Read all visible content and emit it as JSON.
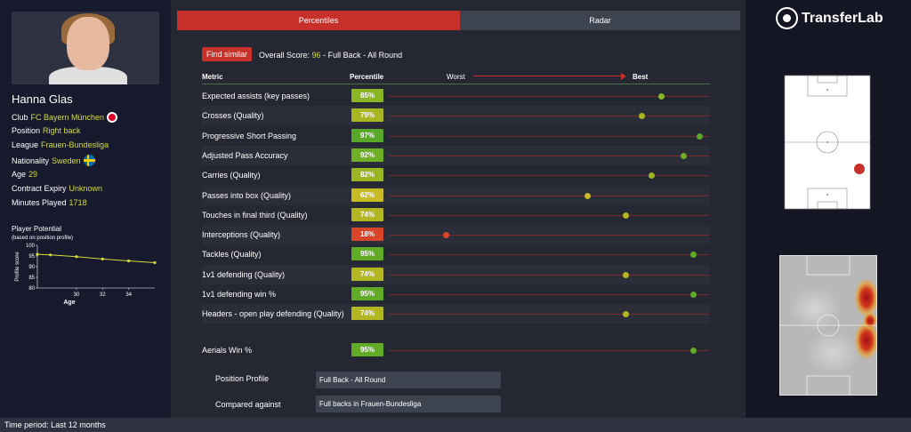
{
  "player": {
    "name": "Hanna Glas",
    "club_label": "Club",
    "club": "FC Bayern München",
    "position_label": "Position",
    "position": "Right back",
    "league_label": "League",
    "league": "Frauen-Bundesliga",
    "nationality_label": "Nationality",
    "nationality": "Sweden",
    "age_label": "Age",
    "age": "29",
    "contract_label": "Contract Expiry",
    "contract": "Unknown",
    "minutes_label": "Minutes Played",
    "minutes": "1718"
  },
  "potential": {
    "title": "Player Potential",
    "subtitle": "(based on position profile)",
    "chart_data": {
      "type": "line",
      "x": [
        27,
        28,
        30,
        32,
        34,
        36
      ],
      "values": [
        95.8,
        95.5,
        94.7,
        93.6,
        92.7,
        91.9
      ],
      "ylim": [
        80,
        100
      ],
      "xlim": [
        27,
        36
      ],
      "yticks": [
        80,
        85,
        90,
        95,
        100
      ],
      "xticks": [
        30,
        32,
        34
      ],
      "xlabel": "Age",
      "ylabel": "Profile score",
      "line_color": "#d6dc3a"
    }
  },
  "tabs": {
    "percentiles": "Percentiles",
    "radar": "Radar"
  },
  "summary": {
    "find_similar": "Find similar",
    "overall_prefix": "Overall Score:",
    "overall_score": "96",
    "overall_suffix": "- Full Back - All Round"
  },
  "table": {
    "header_metric": "Metric",
    "header_percentile": "Percentile",
    "worst": "Worst",
    "best": "Best",
    "rows": [
      {
        "label": "Expected assists (key passes)",
        "pct": "85%",
        "value": 85,
        "color": "#8ab524"
      },
      {
        "label": "Crosses (Quality)",
        "pct": "79%",
        "value": 79,
        "color": "#a9b523"
      },
      {
        "label": "Progressive Short Passing",
        "pct": "97%",
        "value": 97,
        "color": "#5aa82a"
      },
      {
        "label": "Adjusted Pass Accuracy",
        "pct": "92%",
        "value": 92,
        "color": "#6fae27"
      },
      {
        "label": "Carries (Quality)",
        "pct": "82%",
        "value": 82,
        "color": "#9bb524"
      },
      {
        "label": "Passes into box (Quality)",
        "pct": "62%",
        "value": 62,
        "color": "#c9bb25"
      },
      {
        "label": "Touches in final third (Quality)",
        "pct": "74%",
        "value": 74,
        "color": "#b3b623"
      },
      {
        "label": "Interceptions (Quality)",
        "pct": "18%",
        "value": 18,
        "color": "#d8452a"
      },
      {
        "label": "Tackles (Quality)",
        "pct": "95%",
        "value": 95,
        "color": "#62ab28"
      },
      {
        "label": "1v1 defending (Quality)",
        "pct": "74%",
        "value": 74,
        "color": "#b3b623"
      },
      {
        "label": "1v1 defending win %",
        "pct": "95%",
        "value": 95,
        "color": "#62ab28"
      },
      {
        "label": "Headers - open play defending (Quality)",
        "pct": "74%",
        "value": 74,
        "color": "#b3b623"
      }
    ],
    "extra_row": {
      "label": "Aerials Win %",
      "pct": "95%",
      "value": 95,
      "color": "#62ab28"
    }
  },
  "profile": {
    "position_profile_label": "Position Profile",
    "position_profile_value": "Full Back - All Round",
    "compared_label": "Compared against",
    "compared_value": "Full backs in Frauen-Bundesliga"
  },
  "brand": {
    "name": "TransferLab"
  },
  "footer": {
    "time_period": "Time period: Last 12 months"
  }
}
